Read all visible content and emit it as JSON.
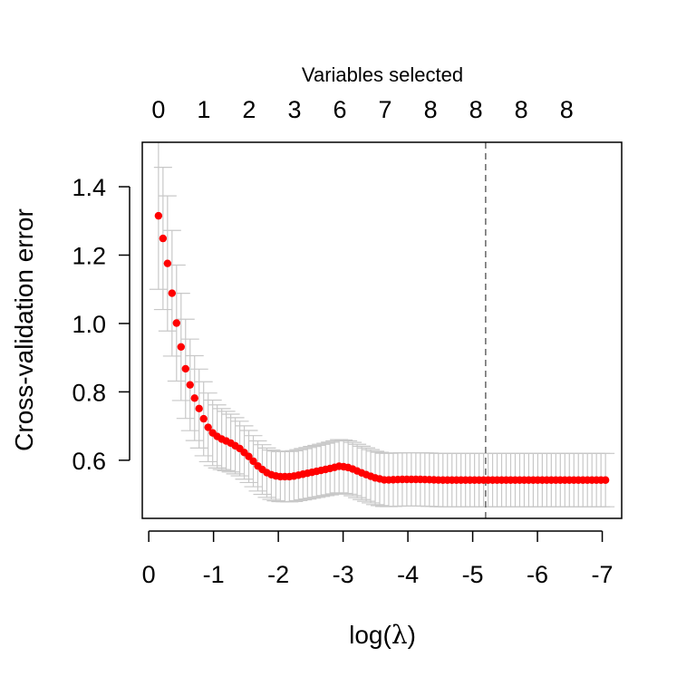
{
  "chart_data": {
    "type": "scatter",
    "title": "",
    "top_axis_title": "Variables selected",
    "xlabel_prefix": "log(",
    "xlabel_symbol": "λ",
    "xlabel_suffix": ")",
    "ylabel": "Cross-validation error",
    "xlim": [
      0.1,
      -7.3
    ],
    "ylim": [
      0.43,
      1.53
    ],
    "x_reversed": true,
    "x_ticks": [
      0,
      -1,
      -2,
      -3,
      -4,
      -5,
      -6,
      -7
    ],
    "x_tick_labels": [
      "0",
      "-1",
      "-2",
      "-3",
      "-4",
      "-5",
      "-6",
      "-7"
    ],
    "y_ticks": [
      0.6,
      0.8,
      1.0,
      1.2,
      1.4
    ],
    "y_tick_labels": [
      "0.6",
      "0.8",
      "1.0",
      "1.2",
      "1.4"
    ],
    "top_ticks_x": [
      -0.15,
      -0.85,
      -1.55,
      -2.25,
      -2.95,
      -3.65,
      -4.35,
      -5.05,
      -5.75,
      -6.45
    ],
    "top_tick_labels": [
      "0",
      "1",
      "2",
      "3",
      "6",
      "7",
      "8",
      "8",
      "8",
      "8"
    ],
    "vline_x": -5.2,
    "grid": false,
    "point_color": "#ff0000",
    "errorbar_color": "#c8c8c8",
    "vline_color": "#666666",
    "cv_curve": {
      "x_start": -0.15,
      "x_end": -7.05,
      "n_points": 100,
      "key_x": [
        -0.15,
        -0.25,
        -0.33,
        -0.4,
        -0.48,
        -0.55,
        -0.63,
        -0.7,
        -0.78,
        -0.85,
        -0.92,
        -1.0,
        -1.1,
        -1.25,
        -1.4,
        -1.55,
        -1.7,
        -1.85,
        -2.0,
        -2.2,
        -2.4,
        -2.6,
        -2.8,
        -2.95,
        -3.1,
        -3.3,
        -3.5,
        -3.65,
        -3.9,
        -4.2,
        -4.5,
        -5.0,
        -6.0,
        -7.05
      ],
      "key_y": [
        1.315,
        1.22,
        1.13,
        1.03,
        0.95,
        0.88,
        0.825,
        0.785,
        0.75,
        0.72,
        0.695,
        0.677,
        0.664,
        0.652,
        0.635,
        0.61,
        0.58,
        0.56,
        0.552,
        0.552,
        0.56,
        0.568,
        0.576,
        0.583,
        0.578,
        0.562,
        0.548,
        0.542,
        0.544,
        0.544,
        0.542,
        0.542,
        0.542,
        0.542
      ],
      "key_err": [
        0.215,
        0.205,
        0.19,
        0.175,
        0.16,
        0.148,
        0.135,
        0.125,
        0.115,
        0.108,
        0.1,
        0.095,
        0.09,
        0.085,
        0.08,
        0.076,
        0.073,
        0.072,
        0.073,
        0.074,
        0.075,
        0.076,
        0.077,
        0.078,
        0.078,
        0.078,
        0.078,
        0.078,
        0.078,
        0.078,
        0.078,
        0.078,
        0.078,
        0.078
      ]
    }
  }
}
